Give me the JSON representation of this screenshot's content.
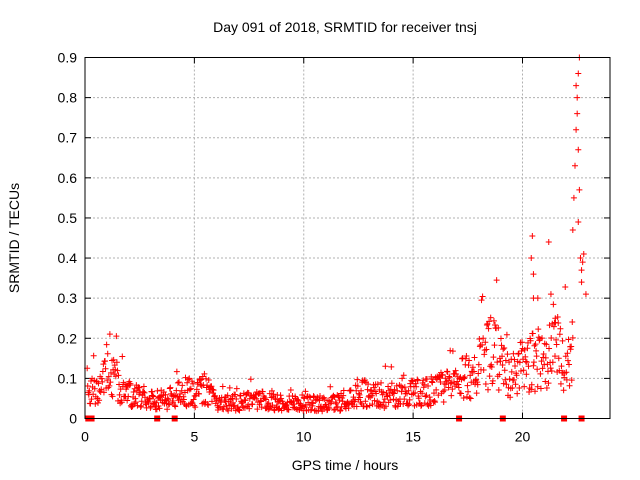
{
  "chart_data": {
    "type": "scatter",
    "title": "Day 091 of 2018, SRMTID for receiver tnsj",
    "xlabel": "GPS time / hours",
    "ylabel": "SRMTID / TECUs",
    "xlim": [
      0,
      24
    ],
    "ylim": [
      0,
      0.9
    ],
    "x_ticks": [
      "0",
      "5",
      "10",
      "15",
      "20"
    ],
    "x_tick_values": [
      0,
      5,
      10,
      15,
      20
    ],
    "y_ticks": [
      "0",
      "0.1",
      "0.2",
      "0.3",
      "0.4",
      "0.5",
      "0.6",
      "0.7",
      "0.8",
      "0.9"
    ],
    "y_tick_values": [
      0,
      0.1,
      0.2,
      0.3,
      0.4,
      0.5,
      0.6,
      0.7,
      0.8,
      0.9
    ],
    "grid": true,
    "series": [
      {
        "name": "SRMTID",
        "color": "#ff0000",
        "marker": "plus",
        "trend": [
          {
            "x": 0.1,
            "y": 0.06
          },
          {
            "x": 0.5,
            "y": 0.07
          },
          {
            "x": 0.8,
            "y": 0.1
          },
          {
            "x": 1.2,
            "y": 0.11
          },
          {
            "x": 1.6,
            "y": 0.08
          },
          {
            "x": 2.0,
            "y": 0.06
          },
          {
            "x": 3.0,
            "y": 0.05
          },
          {
            "x": 4.0,
            "y": 0.05
          },
          {
            "x": 4.5,
            "y": 0.07
          },
          {
            "x": 5.0,
            "y": 0.06
          },
          {
            "x": 5.5,
            "y": 0.08
          },
          {
            "x": 6.0,
            "y": 0.035
          },
          {
            "x": 7.0,
            "y": 0.04
          },
          {
            "x": 8.0,
            "y": 0.045
          },
          {
            "x": 9.0,
            "y": 0.04
          },
          {
            "x": 10.0,
            "y": 0.04
          },
          {
            "x": 11.0,
            "y": 0.035
          },
          {
            "x": 12.0,
            "y": 0.045
          },
          {
            "x": 12.5,
            "y": 0.07
          },
          {
            "x": 13.0,
            "y": 0.06
          },
          {
            "x": 14.0,
            "y": 0.055
          },
          {
            "x": 15.0,
            "y": 0.065
          },
          {
            "x": 16.0,
            "y": 0.07
          },
          {
            "x": 17.0,
            "y": 0.09
          },
          {
            "x": 18.0,
            "y": 0.12
          },
          {
            "x": 18.6,
            "y": 0.17
          },
          {
            "x": 19.0,
            "y": 0.14
          },
          {
            "x": 19.5,
            "y": 0.1
          },
          {
            "x": 20.0,
            "y": 0.13
          },
          {
            "x": 20.5,
            "y": 0.14
          },
          {
            "x": 21.0,
            "y": 0.15
          },
          {
            "x": 21.5,
            "y": 0.17
          },
          {
            "x": 22.0,
            "y": 0.14
          },
          {
            "x": 22.3,
            "y": 0.16
          }
        ],
        "spikes": [
          {
            "x": 20.45,
            "y": 0.455
          },
          {
            "x": 20.4,
            "y": 0.4
          },
          {
            "x": 20.5,
            "y": 0.36
          },
          {
            "x": 20.5,
            "y": 0.3
          },
          {
            "x": 20.7,
            "y": 0.3
          },
          {
            "x": 21.2,
            "y": 0.44
          },
          {
            "x": 21.3,
            "y": 0.31
          },
          {
            "x": 21.5,
            "y": 0.25
          },
          {
            "x": 22.3,
            "y": 0.47
          },
          {
            "x": 22.35,
            "y": 0.55
          },
          {
            "x": 22.4,
            "y": 0.63
          },
          {
            "x": 22.45,
            "y": 0.72
          },
          {
            "x": 22.5,
            "y": 0.8
          },
          {
            "x": 22.55,
            "y": 0.86
          },
          {
            "x": 22.6,
            "y": 0.9
          },
          {
            "x": 22.45,
            "y": 0.83
          },
          {
            "x": 22.5,
            "y": 0.76
          },
          {
            "x": 22.55,
            "y": 0.67
          },
          {
            "x": 22.6,
            "y": 0.57
          },
          {
            "x": 22.55,
            "y": 0.49
          },
          {
            "x": 22.65,
            "y": 0.4
          },
          {
            "x": 22.7,
            "y": 0.37
          },
          {
            "x": 22.8,
            "y": 0.41
          },
          {
            "x": 22.9,
            "y": 0.31
          },
          {
            "x": 22.7,
            "y": 0.34
          },
          {
            "x": 22.75,
            "y": 0.39
          }
        ]
      }
    ],
    "gap_markers": {
      "name": "data gaps",
      "color": "#ff0000",
      "marker": "square",
      "x": [
        0.15,
        0.3,
        3.3,
        4.1,
        17.1,
        19.1,
        21.9,
        22.7
      ],
      "y": 0
    }
  }
}
